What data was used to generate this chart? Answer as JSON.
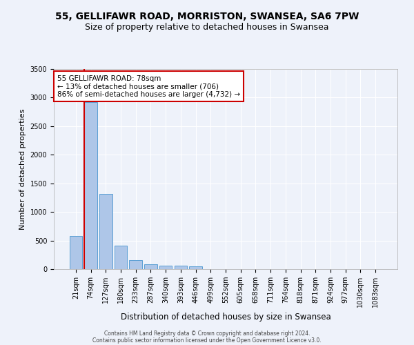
{
  "title1": "55, GELLIFAWR ROAD, MORRISTON, SWANSEA, SA6 7PW",
  "title2": "Size of property relative to detached houses in Swansea",
  "xlabel": "Distribution of detached houses by size in Swansea",
  "ylabel": "Number of detached properties",
  "footnote1": "Contains HM Land Registry data © Crown copyright and database right 2024.",
  "footnote2": "Contains public sector information licensed under the Open Government Licence v3.0.",
  "categories": [
    "21sqm",
    "74sqm",
    "127sqm",
    "180sqm",
    "233sqm",
    "287sqm",
    "340sqm",
    "393sqm",
    "446sqm",
    "499sqm",
    "552sqm",
    "605sqm",
    "658sqm",
    "711sqm",
    "764sqm",
    "818sqm",
    "871sqm",
    "924sqm",
    "977sqm",
    "1030sqm",
    "1083sqm"
  ],
  "values": [
    580,
    2920,
    1320,
    410,
    155,
    85,
    60,
    55,
    45,
    0,
    0,
    0,
    0,
    0,
    0,
    0,
    0,
    0,
    0,
    0,
    0
  ],
  "bar_color": "#aec6e8",
  "bar_edge_color": "#5a9fd4",
  "marker_color": "#cc0000",
  "annotation_text": "55 GELLIFAWR ROAD: 78sqm\n← 13% of detached houses are smaller (706)\n86% of semi-detached houses are larger (4,732) →",
  "annotation_box_color": "#ffffff",
  "annotation_box_edge": "#cc0000",
  "ylim": [
    0,
    3500
  ],
  "yticks": [
    0,
    500,
    1000,
    1500,
    2000,
    2500,
    3000,
    3500
  ],
  "bg_color": "#eef2fa",
  "plot_bg_color": "#eef2fa",
  "title1_fontsize": 10,
  "title2_fontsize": 9,
  "xlabel_fontsize": 8.5,
  "ylabel_fontsize": 8,
  "tick_fontsize": 7,
  "grid_color": "#ffffff",
  "annot_fontsize": 7.5
}
